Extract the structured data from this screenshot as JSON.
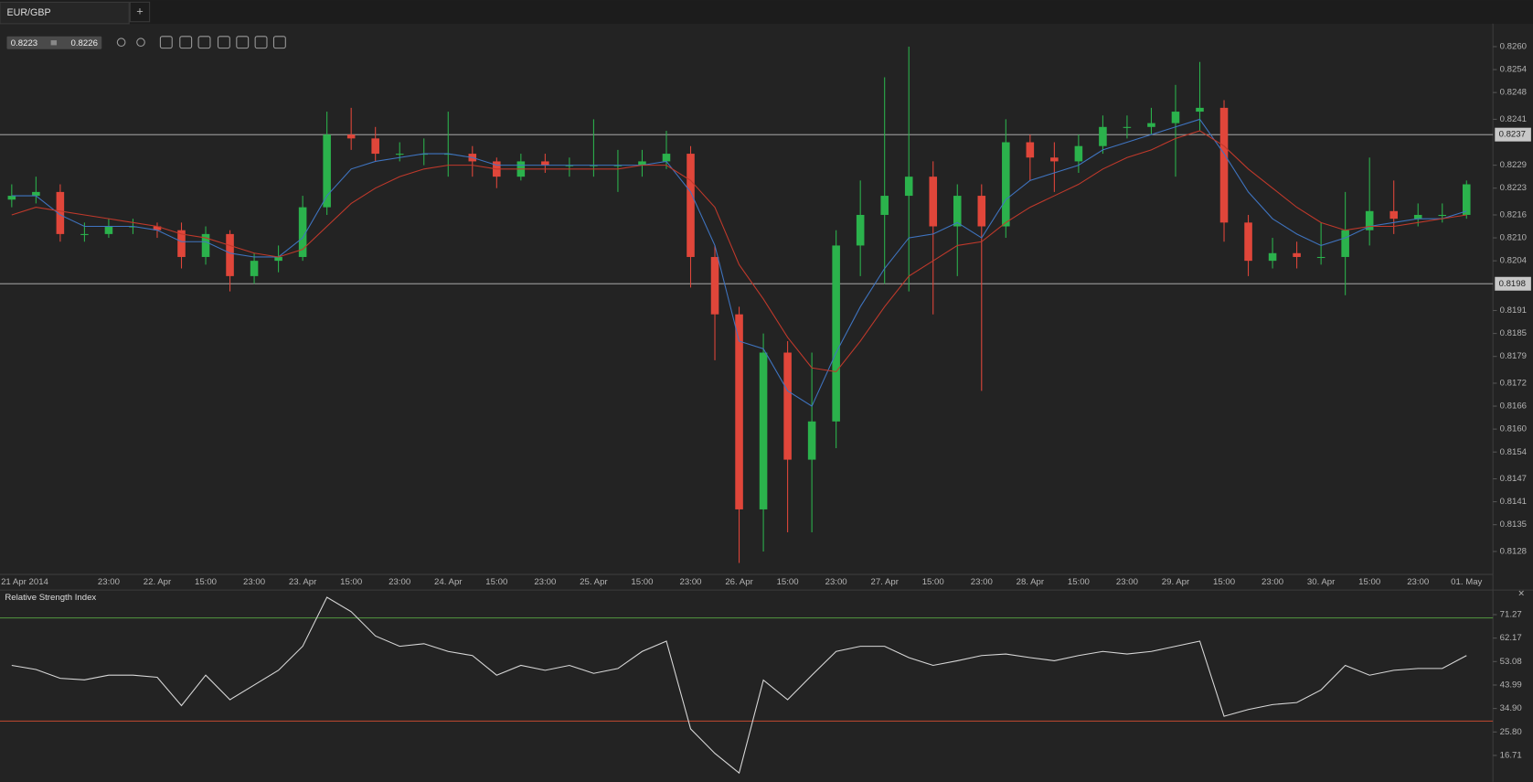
{
  "tab": {
    "title": "EUR/GBP",
    "add": "+"
  },
  "quote": {
    "bid": 0.8223,
    "ask": 0.8226
  },
  "chart_data": [
    {
      "type": "candlestick",
      "up_color": "#2bb24c",
      "down_color": "#e0463a",
      "categories": [
        "21 Apr 2014",
        null,
        null,
        null,
        "23:00",
        null,
        "22. Apr",
        null,
        "15:00",
        null,
        "23:00",
        null,
        "23. Apr",
        null,
        "15:00",
        null,
        "23:00",
        null,
        "24. Apr",
        null,
        "15:00",
        null,
        "23:00",
        null,
        "25. Apr",
        null,
        "15:00",
        null,
        "23:00",
        null,
        "26. Apr",
        null,
        "15:00",
        null,
        "23:00",
        null,
        "27. Apr",
        null,
        "15:00",
        null,
        "23:00",
        null,
        "28. Apr",
        null,
        "15:00",
        null,
        "23:00",
        null,
        "29. Apr",
        null,
        "15:00",
        null,
        "23:00",
        null,
        "30. Apr",
        null,
        "15:00",
        null,
        "23:00",
        null,
        "01. May"
      ],
      "open": [
        0.822,
        0.8221,
        0.8222,
        0.8211,
        0.8211,
        0.8213,
        0.8213,
        0.8212,
        0.8205,
        0.8211,
        0.82,
        0.8204,
        0.8205,
        0.8218,
        0.8237,
        0.8236,
        0.8232,
        0.8232,
        0.8232,
        0.8232,
        0.823,
        0.8226,
        0.823,
        0.8229,
        0.8229,
        0.8229,
        0.8229,
        0.823,
        0.8232,
        0.8205,
        0.819,
        0.8139,
        0.818,
        0.8152,
        0.8162,
        0.8208,
        0.8216,
        0.8221,
        0.8226,
        0.8213,
        0.8221,
        0.8213,
        0.8235,
        0.8231,
        0.823,
        0.8234,
        0.8239,
        0.8239,
        0.824,
        0.8243,
        0.8244,
        0.8214,
        0.8204,
        0.8206,
        0.8205,
        0.8205,
        0.8212,
        0.8217,
        0.8215,
        0.8216,
        0.8216
      ],
      "high": [
        0.8224,
        0.8226,
        0.8224,
        0.8214,
        0.8215,
        0.8215,
        0.8214,
        0.8214,
        0.8213,
        0.8212,
        0.8206,
        0.8208,
        0.8221,
        0.8243,
        0.8244,
        0.8239,
        0.8235,
        0.8236,
        0.8243,
        0.8234,
        0.8231,
        0.8232,
        0.8232,
        0.8231,
        0.8241,
        0.8233,
        0.8233,
        0.8238,
        0.8234,
        0.8208,
        0.8192,
        0.8185,
        0.8183,
        0.818,
        0.8212,
        0.8225,
        0.8252,
        0.826,
        0.823,
        0.8224,
        0.8224,
        0.8241,
        0.8237,
        0.8235,
        0.8237,
        0.8242,
        0.8242,
        0.8244,
        0.825,
        0.8256,
        0.8246,
        0.8216,
        0.821,
        0.8209,
        0.8214,
        0.8222,
        0.8231,
        0.8225,
        0.8219,
        0.8219,
        0.8225
      ],
      "low": [
        0.8218,
        0.8219,
        0.8209,
        0.8209,
        0.821,
        0.8211,
        0.821,
        0.8202,
        0.8203,
        0.8196,
        0.8198,
        0.8201,
        0.8204,
        0.8216,
        0.8233,
        0.823,
        0.823,
        0.8229,
        0.8226,
        0.8226,
        0.8223,
        0.8225,
        0.8227,
        0.8226,
        0.8226,
        0.8222,
        0.8226,
        0.8228,
        0.8197,
        0.8178,
        0.8125,
        0.8128,
        0.8133,
        0.8133,
        0.8155,
        0.82,
        0.8198,
        0.8196,
        0.819,
        0.82,
        0.817,
        0.821,
        0.8225,
        0.8222,
        0.8227,
        0.8232,
        0.8236,
        0.8237,
        0.8226,
        0.8238,
        0.8209,
        0.82,
        0.8202,
        0.8202,
        0.8203,
        0.8195,
        0.8208,
        0.8211,
        0.8213,
        0.8214,
        0.8215
      ],
      "close": [
        0.8221,
        0.8222,
        0.8211,
        0.8211,
        0.8213,
        0.8213,
        0.8212,
        0.8205,
        0.8211,
        0.82,
        0.8204,
        0.8205,
        0.8218,
        0.8237,
        0.8236,
        0.8232,
        0.8232,
        0.8232,
        0.8232,
        0.823,
        0.8226,
        0.823,
        0.8229,
        0.8229,
        0.8229,
        0.8229,
        0.823,
        0.8232,
        0.8205,
        0.819,
        0.8139,
        0.818,
        0.8152,
        0.8162,
        0.8208,
        0.8216,
        0.8221,
        0.8226,
        0.8213,
        0.8221,
        0.8213,
        0.8235,
        0.8231,
        0.823,
        0.8234,
        0.8239,
        0.8239,
        0.824,
        0.8243,
        0.8244,
        0.8214,
        0.8204,
        0.8206,
        0.8205,
        0.8205,
        0.8212,
        0.8217,
        0.8215,
        0.8216,
        0.8216,
        0.8224
      ],
      "lines": [
        {
          "color": "#3f74c0",
          "values": [
            0.8221,
            0.8221,
            0.8216,
            0.8213,
            0.8213,
            0.8213,
            0.8212,
            0.8209,
            0.8209,
            0.8206,
            0.8205,
            0.8205,
            0.821,
            0.8221,
            0.8228,
            0.823,
            0.8231,
            0.8232,
            0.8232,
            0.8231,
            0.8229,
            0.8229,
            0.8229,
            0.8229,
            0.8229,
            0.8229,
            0.8229,
            0.823,
            0.8222,
            0.8208,
            0.8183,
            0.8181,
            0.817,
            0.8166,
            0.818,
            0.8192,
            0.8202,
            0.821,
            0.8211,
            0.8214,
            0.821,
            0.822,
            0.8225,
            0.8227,
            0.8229,
            0.8233,
            0.8235,
            0.8237,
            0.8239,
            0.8241,
            0.8232,
            0.8222,
            0.8215,
            0.8211,
            0.8208,
            0.821,
            0.8213,
            0.8214,
            0.8215,
            0.8215,
            0.8217
          ]
        },
        {
          "color": "#c0392b",
          "values": [
            0.8216,
            0.8218,
            0.8217,
            0.8216,
            0.8215,
            0.8214,
            0.8213,
            0.8211,
            0.821,
            0.8208,
            0.8206,
            0.8205,
            0.8207,
            0.8213,
            0.8219,
            0.8223,
            0.8226,
            0.8228,
            0.8229,
            0.8229,
            0.8228,
            0.8228,
            0.8228,
            0.8228,
            0.8228,
            0.8228,
            0.8229,
            0.8229,
            0.8225,
            0.8218,
            0.8203,
            0.8194,
            0.8184,
            0.8176,
            0.8175,
            0.8183,
            0.8192,
            0.82,
            0.8204,
            0.8208,
            0.8209,
            0.8214,
            0.8218,
            0.8221,
            0.8224,
            0.8228,
            0.8231,
            0.8233,
            0.8236,
            0.8238,
            0.8234,
            0.8228,
            0.8223,
            0.8218,
            0.8214,
            0.8212,
            0.8213,
            0.8213,
            0.8214,
            0.8215,
            0.8216
          ]
        }
      ],
      "price_lines": [
        0.8237,
        0.8198
      ],
      "ylim": [
        0.8122,
        0.8266
      ],
      "yticks": [
        {
          "value": 0.826,
          "label": "0.8260"
        },
        0.8254,
        0.8248,
        0.8241,
        0.8229,
        0.8223,
        0.8216,
        {
          "value": 0.821,
          "label": "0.8210"
        },
        0.8204,
        0.8191,
        0.8185,
        0.8179,
        0.8172,
        0.8166,
        {
          "value": 0.816,
          "label": "0.8160"
        },
        0.8154,
        0.8147,
        0.8141,
        0.8135,
        0.8128
      ]
    },
    {
      "type": "line",
      "title": "Relative Strength Index",
      "color": "#d8d8d8",
      "values": [
        51.6,
        50,
        46.6,
        46,
        47.8,
        47.8,
        47,
        36,
        47.8,
        38.3,
        44,
        49.7,
        59,
        78,
        72.4,
        63,
        59,
        60,
        57,
        55.4,
        47.8,
        51.6,
        49.7,
        51.6,
        48.5,
        50.4,
        57,
        61,
        27,
        17.5,
        9.9,
        45.9,
        38.3,
        47.8,
        57,
        59,
        59,
        54.6,
        51.6,
        53.4,
        55.4,
        56,
        54.6,
        53.4,
        55.4,
        57,
        56,
        57,
        59,
        61,
        31.9,
        34.5,
        36.4,
        37.2,
        42.1,
        51.6,
        47.8,
        49.7,
        50.4,
        50.4,
        55.4
      ],
      "levels": [
        {
          "value": 70,
          "color": "#4d8a3c"
        },
        {
          "value": 30,
          "color": "#b0442e"
        }
      ],
      "ylim": [
        6.5,
        80.4
      ],
      "yticks": [
        71.27,
        62.17,
        53.08,
        43.99,
        {
          "value": 34.9,
          "label": "34.90"
        },
        {
          "value": 25.8,
          "label": "25.80"
        },
        16.71
      ]
    }
  ]
}
